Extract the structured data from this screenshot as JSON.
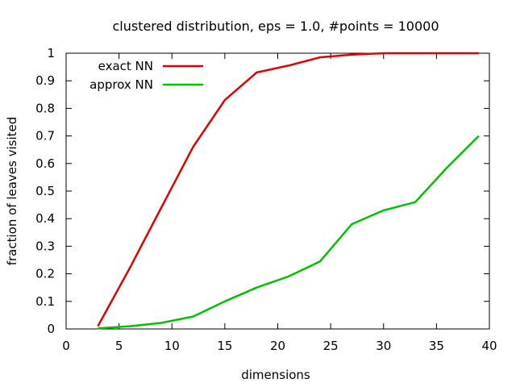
{
  "chart_data": {
    "type": "line",
    "title": "clustered distribution, eps = 1.0, #points = 10000",
    "xlabel": "dimensions",
    "ylabel": "fraction of leaves visited",
    "xlim": [
      0,
      40
    ],
    "ylim": [
      0,
      1
    ],
    "xticks": [
      0,
      5,
      10,
      15,
      20,
      25,
      30,
      35,
      40
    ],
    "yticks": [
      0,
      0.1,
      0.2,
      0.3,
      0.4,
      0.5,
      0.6,
      0.7,
      0.8,
      0.9,
      1
    ],
    "grid": false,
    "legend_position": "top-left",
    "series": [
      {
        "name": "exact NN",
        "color": "#e00000",
        "x": [
          3,
          6,
          9,
          12,
          15,
          18,
          21,
          24,
          27,
          30,
          33,
          36,
          39
        ],
        "y": [
          0.01,
          0.22,
          0.44,
          0.66,
          0.83,
          0.93,
          0.955,
          0.985,
          0.995,
          1,
          1,
          1,
          1
        ]
      },
      {
        "name": "approx NN",
        "color": "#00c000",
        "x": [
          3,
          6,
          9,
          12,
          15,
          18,
          21,
          24,
          27,
          30,
          33,
          36,
          39
        ],
        "y": [
          0.002,
          0.01,
          0.022,
          0.045,
          0.1,
          0.15,
          0.19,
          0.245,
          0.38,
          0.43,
          0.46,
          0.585,
          0.7
        ]
      }
    ]
  }
}
